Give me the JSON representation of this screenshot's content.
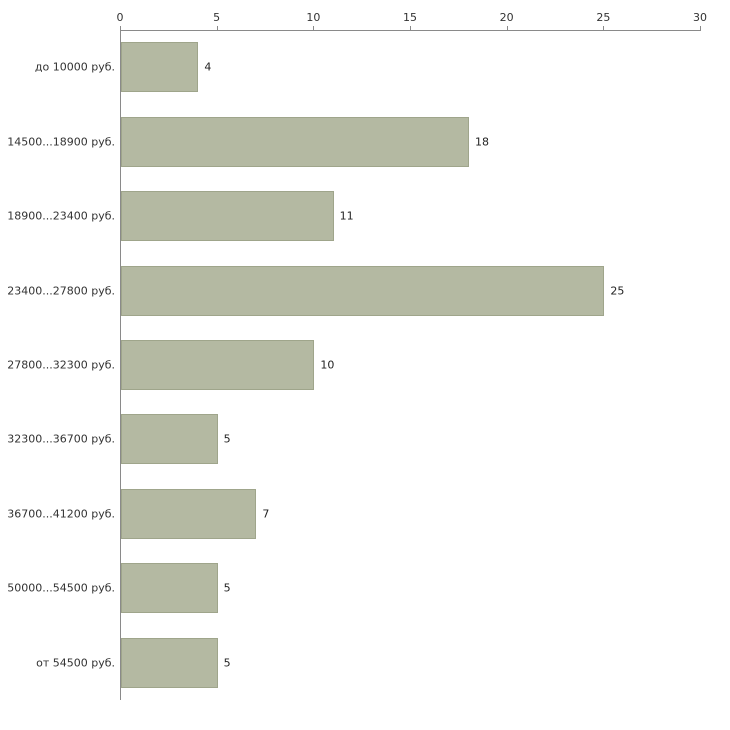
{
  "chart_data": {
    "type": "bar",
    "orientation": "horizontal",
    "title": "",
    "xlabel": "",
    "ylabel": "",
    "categories": [
      "до 10000 руб.",
      "14500...18900 руб.",
      "18900...23400 руб.",
      "23400...27800 руб.",
      "27800...32300 руб.",
      "32300...36700 руб.",
      "36700...41200 руб.",
      "50000...54500 руб.",
      "от 54500 руб."
    ],
    "values": [
      4,
      18,
      11,
      25,
      10,
      5,
      7,
      5,
      5
    ],
    "xlim": [
      0,
      30
    ],
    "x_ticks": [
      0,
      5,
      10,
      15,
      20,
      25,
      30
    ],
    "grid": false,
    "legend": false,
    "bar_color": "#b4b9a2",
    "bar_border_color": "#9fa58b",
    "axis_color": "#8a8a8a",
    "text_color": "#333333",
    "background_color": "#ffffff"
  }
}
